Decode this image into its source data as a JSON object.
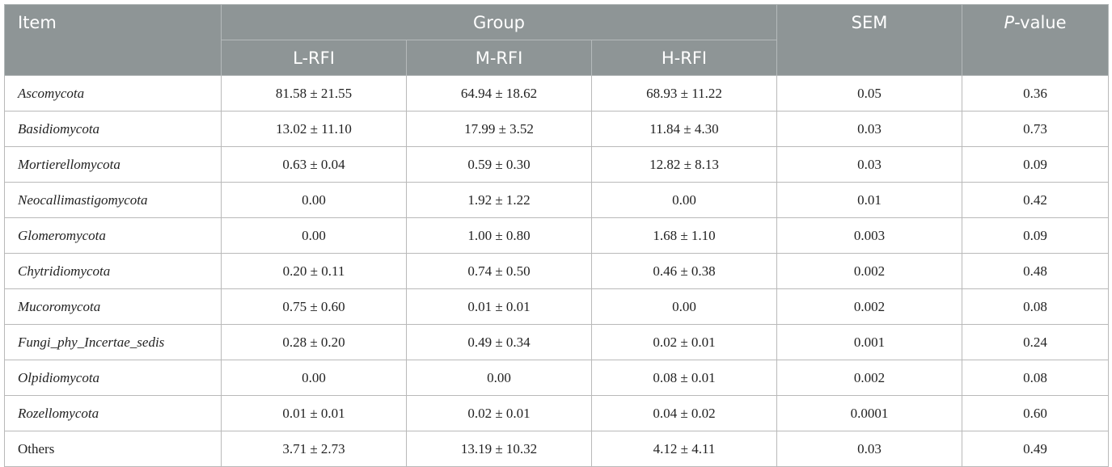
{
  "table": {
    "header": {
      "item": "Item",
      "group": "Group",
      "sem": "SEM",
      "p_italic": "P",
      "p_rest": "-value",
      "groups": [
        "L-RFI",
        "M-RFI",
        "H-RFI"
      ]
    },
    "rows": [
      {
        "name": "Ascomycota",
        "italic": true,
        "l": "81.58 ± 21.55",
        "m": "64.94 ± 18.62",
        "h": "68.93 ± 11.22",
        "sem": "0.05",
        "p": "0.36"
      },
      {
        "name": "Basidiomycota",
        "italic": true,
        "l": "13.02 ± 11.10",
        "m": "17.99 ± 3.52",
        "h": "11.84 ± 4.30",
        "sem": "0.03",
        "p": "0.73"
      },
      {
        "name": "Mortierellomycota",
        "italic": true,
        "l": "0.63 ± 0.04",
        "m": "0.59 ± 0.30",
        "h": "12.82 ± 8.13",
        "sem": "0.03",
        "p": "0.09"
      },
      {
        "name": "Neocallimastigomycota",
        "italic": true,
        "l": "0.00",
        "m": "1.92 ± 1.22",
        "h": "0.00",
        "sem": "0.01",
        "p": "0.42"
      },
      {
        "name": "Glomeromycota",
        "italic": true,
        "l": "0.00",
        "m": "1.00 ± 0.80",
        "h": "1.68 ± 1.10",
        "sem": "0.003",
        "p": "0.09"
      },
      {
        "name": "Chytridiomycota",
        "italic": true,
        "l": "0.20 ± 0.11",
        "m": "0.74 ± 0.50",
        "h": "0.46 ± 0.38",
        "sem": "0.002",
        "p": "0.48"
      },
      {
        "name": "Mucoromycota",
        "italic": true,
        "l": "0.75 ± 0.60",
        "m": "0.01 ± 0.01",
        "h": "0.00",
        "sem": "0.002",
        "p": "0.08"
      },
      {
        "name": "Fungi_phy_Incertae_sedis",
        "italic": true,
        "l": "0.28 ± 0.20",
        "m": "0.49 ± 0.34",
        "h": "0.02 ± 0.01",
        "sem": "0.001",
        "p": "0.24"
      },
      {
        "name": "Olpidiomycota",
        "italic": true,
        "l": "0.00",
        "m": "0.00",
        "h": "0.08 ± 0.01",
        "sem": "0.002",
        "p": "0.08"
      },
      {
        "name": "Rozellomycota",
        "italic": true,
        "l": "0.01 ± 0.01",
        "m": "0.02 ± 0.01",
        "h": "0.04 ± 0.02",
        "sem": "0.0001",
        "p": "0.60"
      },
      {
        "name": "Others",
        "italic": false,
        "l": "3.71 ± 2.73",
        "m": "13.19 ± 10.32",
        "h": "4.12 ± 4.11",
        "sem": "0.03",
        "p": "0.49"
      }
    ]
  }
}
